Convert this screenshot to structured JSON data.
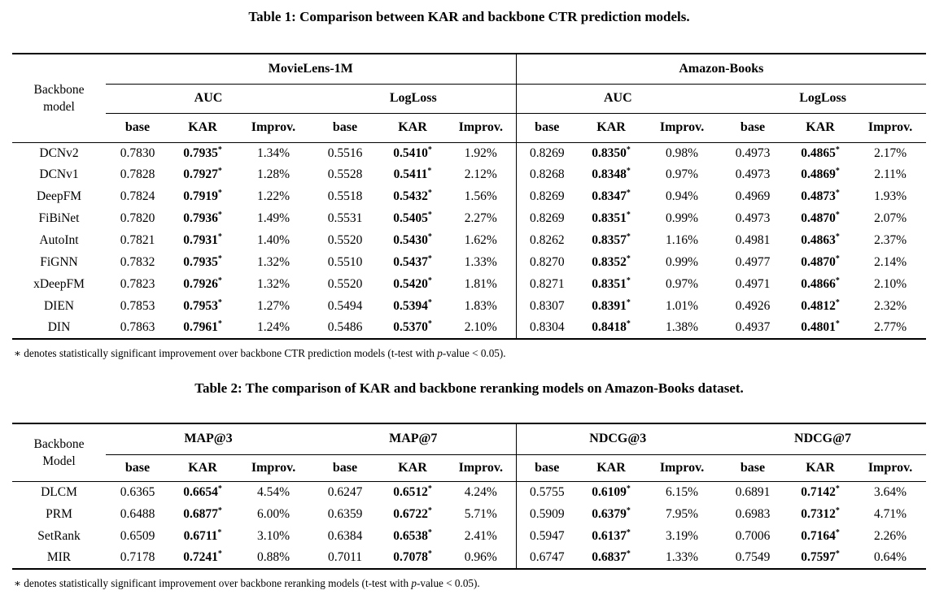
{
  "table1": {
    "title": "Table 1: Comparison between KAR and backbone CTR prediction models.",
    "backbone_header": [
      "Backbone",
      "model"
    ],
    "dataset_headers": [
      "MovieLens-1M",
      "Amazon-Books"
    ],
    "metric_headers": [
      "AUC",
      "LogLoss",
      "AUC",
      "LogLoss"
    ],
    "sub_headers": [
      "base",
      "KAR",
      "Improv."
    ],
    "sig_marker": "*",
    "rows": [
      {
        "model": "DCNv2",
        "cells": [
          {
            "base": "0.7830",
            "kar": "0.7935",
            "improv": "1.34%"
          },
          {
            "base": "0.5516",
            "kar": "0.5410",
            "improv": "1.92%"
          },
          {
            "base": "0.8269",
            "kar": "0.8350",
            "improv": "0.98%"
          },
          {
            "base": "0.4973",
            "kar": "0.4865",
            "improv": "2.17%"
          }
        ]
      },
      {
        "model": "DCNv1",
        "cells": [
          {
            "base": "0.7828",
            "kar": "0.7927",
            "improv": "1.28%"
          },
          {
            "base": "0.5528",
            "kar": "0.5411",
            "improv": "2.12%"
          },
          {
            "base": "0.8268",
            "kar": "0.8348",
            "improv": "0.97%"
          },
          {
            "base": "0.4973",
            "kar": "0.4869",
            "improv": "2.11%"
          }
        ]
      },
      {
        "model": "DeepFM",
        "cells": [
          {
            "base": "0.7824",
            "kar": "0.7919",
            "improv": "1.22%"
          },
          {
            "base": "0.5518",
            "kar": "0.5432",
            "improv": "1.56%"
          },
          {
            "base": "0.8269",
            "kar": "0.8347",
            "improv": "0.94%"
          },
          {
            "base": "0.4969",
            "kar": "0.4873",
            "improv": "1.93%"
          }
        ]
      },
      {
        "model": "FiBiNet",
        "cells": [
          {
            "base": "0.7820",
            "kar": "0.7936",
            "improv": "1.49%"
          },
          {
            "base": "0.5531",
            "kar": "0.5405",
            "improv": "2.27%"
          },
          {
            "base": "0.8269",
            "kar": "0.8351",
            "improv": "0.99%"
          },
          {
            "base": "0.4973",
            "kar": "0.4870",
            "improv": "2.07%"
          }
        ]
      },
      {
        "model": "AutoInt",
        "cells": [
          {
            "base": "0.7821",
            "kar": "0.7931",
            "improv": "1.40%"
          },
          {
            "base": "0.5520",
            "kar": "0.5430",
            "improv": "1.62%"
          },
          {
            "base": "0.8262",
            "kar": "0.8357",
            "improv": "1.16%"
          },
          {
            "base": "0.4981",
            "kar": "0.4863",
            "improv": "2.37%"
          }
        ]
      },
      {
        "model": "FiGNN",
        "cells": [
          {
            "base": "0.7832",
            "kar": "0.7935",
            "improv": "1.32%"
          },
          {
            "base": "0.5510",
            "kar": "0.5437",
            "improv": "1.33%"
          },
          {
            "base": "0.8270",
            "kar": "0.8352",
            "improv": "0.99%"
          },
          {
            "base": "0.4977",
            "kar": "0.4870",
            "improv": "2.14%"
          }
        ]
      },
      {
        "model": "xDeepFM",
        "cells": [
          {
            "base": "0.7823",
            "kar": "0.7926",
            "improv": "1.32%"
          },
          {
            "base": "0.5520",
            "kar": "0.5420",
            "improv": "1.81%"
          },
          {
            "base": "0.8271",
            "kar": "0.8351",
            "improv": "0.97%"
          },
          {
            "base": "0.4971",
            "kar": "0.4866",
            "improv": "2.10%"
          }
        ]
      },
      {
        "model": "DIEN",
        "cells": [
          {
            "base": "0.7853",
            "kar": "0.7953",
            "improv": "1.27%"
          },
          {
            "base": "0.5494",
            "kar": "0.5394",
            "improv": "1.83%"
          },
          {
            "base": "0.8307",
            "kar": "0.8391",
            "improv": "1.01%"
          },
          {
            "base": "0.4926",
            "kar": "0.4812",
            "improv": "2.32%"
          }
        ]
      },
      {
        "model": "DIN",
        "cells": [
          {
            "base": "0.7863",
            "kar": "0.7961",
            "improv": "1.24%"
          },
          {
            "base": "0.5486",
            "kar": "0.5370",
            "improv": "2.10%"
          },
          {
            "base": "0.8304",
            "kar": "0.8418",
            "improv": "1.38%"
          },
          {
            "base": "0.4937",
            "kar": "0.4801",
            "improv": "2.77%"
          }
        ]
      }
    ],
    "footnote": {
      "marker": "∗",
      "pre": " denotes statistically significant improvement over backbone CTR prediction models (t-test with ",
      "italic": "p",
      "post": "-value < 0.05)."
    }
  },
  "table2": {
    "title": "Table 2: The comparison of KAR and backbone reranking models on Amazon-Books dataset.",
    "backbone_header": [
      "Backbone",
      "Model"
    ],
    "group_headers": [
      "MAP@3",
      "MAP@7",
      "NDCG@3",
      "NDCG@7"
    ],
    "sub_headers": [
      "base",
      "KAR",
      "Improv."
    ],
    "sig_marker": "*",
    "rows": [
      {
        "model": "DLCM",
        "cells": [
          {
            "base": "0.6365",
            "kar": "0.6654",
            "improv": "4.54%"
          },
          {
            "base": "0.6247",
            "kar": "0.6512",
            "improv": "4.24%"
          },
          {
            "base": "0.5755",
            "kar": "0.6109",
            "improv": "6.15%"
          },
          {
            "base": "0.6891",
            "kar": "0.7142",
            "improv": "3.64%"
          }
        ]
      },
      {
        "model": "PRM",
        "cells": [
          {
            "base": "0.6488",
            "kar": "0.6877",
            "improv": "6.00%"
          },
          {
            "base": "0.6359",
            "kar": "0.6722",
            "improv": "5.71%"
          },
          {
            "base": "0.5909",
            "kar": "0.6379",
            "improv": "7.95%"
          },
          {
            "base": "0.6983",
            "kar": "0.7312",
            "improv": "4.71%"
          }
        ]
      },
      {
        "model": "SetRank",
        "cells": [
          {
            "base": "0.6509",
            "kar": "0.6711",
            "improv": "3.10%"
          },
          {
            "base": "0.6384",
            "kar": "0.6538",
            "improv": "2.41%"
          },
          {
            "base": "0.5947",
            "kar": "0.6137",
            "improv": "3.19%"
          },
          {
            "base": "0.7006",
            "kar": "0.7164",
            "improv": "2.26%"
          }
        ]
      },
      {
        "model": "MIR",
        "cells": [
          {
            "base": "0.7178",
            "kar": "0.7241",
            "improv": "0.88%"
          },
          {
            "base": "0.7011",
            "kar": "0.7078",
            "improv": "0.96%"
          },
          {
            "base": "0.6747",
            "kar": "0.6837",
            "improv": "1.33%"
          },
          {
            "base": "0.7549",
            "kar": "0.7597",
            "improv": "0.64%"
          }
        ]
      }
    ],
    "footnote": {
      "marker": "∗",
      "pre": " denotes statistically significant improvement over backbone reranking models (t-test with ",
      "italic": "p",
      "post": "-value < 0.05)."
    }
  }
}
